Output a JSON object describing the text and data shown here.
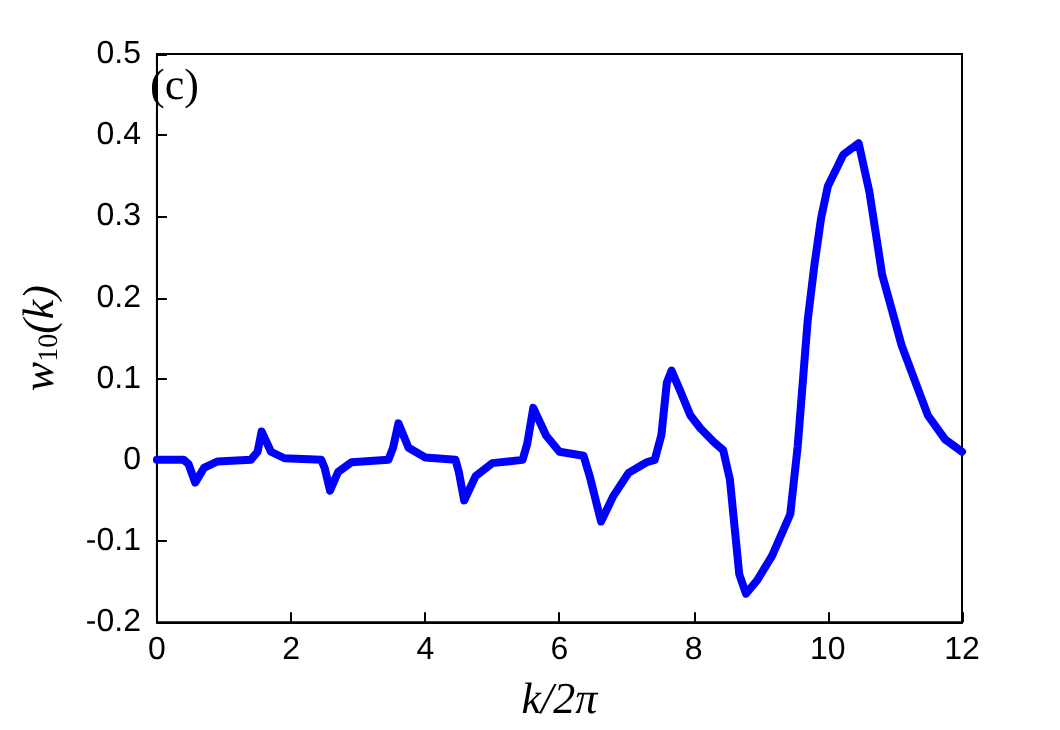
{
  "chart_data": {
    "type": "line",
    "xlabel": "k/2π",
    "ylabel": "w$_{10}$(k)",
    "annotations": [
      "(c)"
    ],
    "x": [
      0,
      0.4,
      0.47,
      0.57,
      0.7,
      0.9,
      1.4,
      1.5,
      1.56,
      1.7,
      1.9,
      2.45,
      2.5,
      2.58,
      2.7,
      2.9,
      3.45,
      3.52,
      3.6,
      3.75,
      4.0,
      4.45,
      4.5,
      4.58,
      4.75,
      5.0,
      5.45,
      5.52,
      5.61,
      5.8,
      6.0,
      6.36,
      6.45,
      6.62,
      6.8,
      7.03,
      7.3,
      7.42,
      7.52,
      7.6,
      7.67,
      7.8,
      7.95,
      8.1,
      8.3,
      8.44,
      8.54,
      8.68,
      8.78,
      8.95,
      9.17,
      9.44,
      9.55,
      9.7,
      9.8,
      9.9,
      10.0,
      10.23,
      10.46,
      10.62,
      10.81,
      11.1,
      11.49,
      11.75,
      12
    ],
    "series": [
      {
        "color": "#0000ff",
        "values": [
          0,
          0,
          -0.005,
          -0.028,
          -0.01,
          -0.002,
          0,
          0.01,
          0.035,
          0.01,
          0.002,
          0,
          -0.01,
          -0.038,
          -0.015,
          -0.003,
          0,
          0.015,
          0.045,
          0.015,
          0.003,
          0,
          -0.015,
          -0.05,
          -0.02,
          -0.004,
          0,
          0.02,
          0.064,
          0.03,
          0.01,
          0.005,
          -0.02,
          -0.076,
          -0.045,
          -0.016,
          -0.003,
          0,
          0.031,
          0.095,
          0.11,
          0.085,
          0.055,
          0.039,
          0.022,
          0.012,
          -0.024,
          -0.141,
          -0.165,
          -0.148,
          -0.118,
          -0.067,
          0.016,
          0.172,
          0.24,
          0.298,
          0.337,
          0.376,
          0.39,
          0.33,
          0.228,
          0.141,
          0.055,
          0.025,
          0.01
        ]
      }
    ],
    "xlim": [
      0,
      12
    ],
    "xticks": [
      0,
      2,
      4,
      6,
      8,
      10,
      12
    ],
    "ylim": [
      -0.2,
      0.5
    ],
    "yticks": [
      -0.2,
      -0.1,
      0,
      0.1,
      0.2,
      0.3,
      0.4,
      0.5
    ],
    "grid": false,
    "marker": "none",
    "line_style": "solid"
  }
}
